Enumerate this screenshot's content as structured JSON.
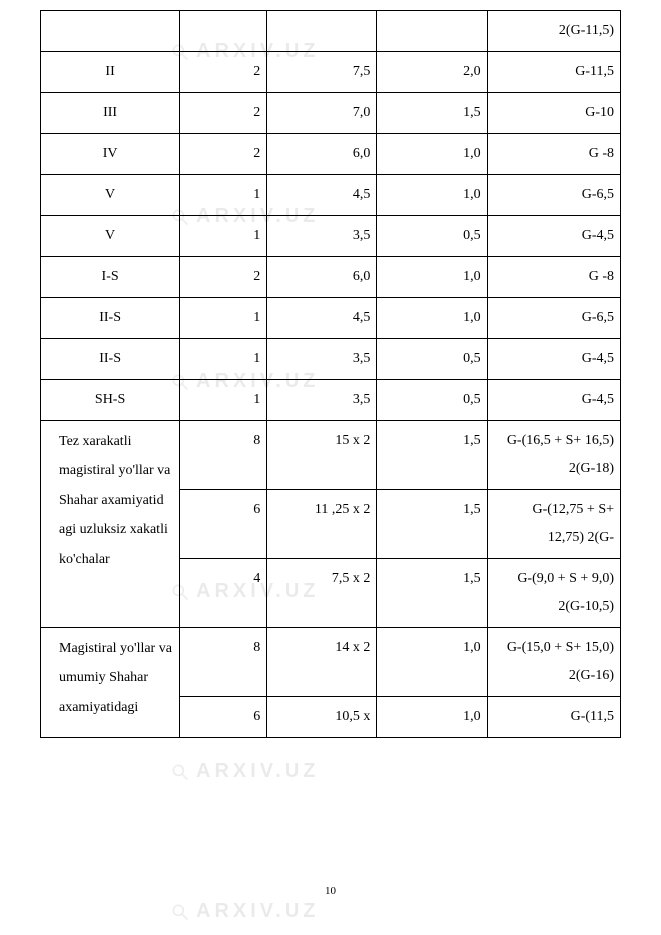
{
  "pageNumber": "10",
  "watermark": {
    "text": "ARXIV.UZ",
    "fontSize": 20
  },
  "columns": {
    "c1_width": "24%",
    "c2_width": "15%",
    "c3_width": "19%",
    "c4_width": "19%",
    "c5_width": "23%"
  },
  "rows": [
    {
      "c1": "",
      "c2": "",
      "c3": "",
      "c4": "",
      "c5": "2(G-11,5)"
    },
    {
      "c1": "II",
      "c2": "2",
      "c3": "7,5",
      "c4": "2,0",
      "c5": "G-11,5"
    },
    {
      "c1": "III",
      "c2": "2",
      "c3": "7,0",
      "c4": "1,5",
      "c5": "G-10"
    },
    {
      "c1": "IV",
      "c2": "2",
      "c3": "6,0",
      "c4": "1,0",
      "c5": "G -8"
    },
    {
      "c1": "V",
      "c2": "1",
      "c3": "4,5",
      "c4": "1,0",
      "c5": "G-6,5"
    },
    {
      "c1": "V",
      "c2": "1",
      "c3": "3,5",
      "c4": "0,5",
      "c5": "G-4,5"
    },
    {
      "c1": "I-S",
      "c2": "2",
      "c3": "6,0",
      "c4": "1,0",
      "c5": "G -8"
    },
    {
      "c1": "II-S",
      "c2": "1",
      "c3": "4,5",
      "c4": "1,0",
      "c5": "G-6,5"
    },
    {
      "c1": "II-S",
      "c2": "1",
      "c3": "3,5",
      "c4": "0,5",
      "c5": "G-4,5"
    },
    {
      "c1": "SH-S",
      "c2": "1",
      "c3": "3,5",
      "c4": "0,5",
      "c5": "G-4,5"
    }
  ],
  "groupA": {
    "label": "Tez xarakatli magistiral yo'llar va Shahar axamiyatid agi uzluksiz xakatli ko'chalar",
    "rows": [
      {
        "c2": "8",
        "c3": "15 х 2",
        "c4": "1,5",
        "c5": "G-(16,5 + S+ 16,5) 2(G-18)"
      },
      {
        "c2": "6",
        "c3": "11 ,25 х 2",
        "c4": "1,5",
        "c5": "G-(12,75 + S+ 12,75) 2(G-"
      },
      {
        "c2": "4",
        "c3": "7,5 х 2",
        "c4": "1,5",
        "c5": "G-(9,0 + S + 9,0) 2(G-10,5)"
      }
    ]
  },
  "groupB": {
    "label": "Magistiral yo'llar va umumiy Shahar axamiyatidagi",
    "rows": [
      {
        "c2": "8",
        "c3": "14 х 2",
        "c4": "1,0",
        "c5": "G-(15,0 + S+ 15,0) 2(G-16)"
      },
      {
        "c2": "6",
        "c3": "10,5 х",
        "c4": "1,0",
        "c5": "G-(11,5"
      }
    ]
  }
}
